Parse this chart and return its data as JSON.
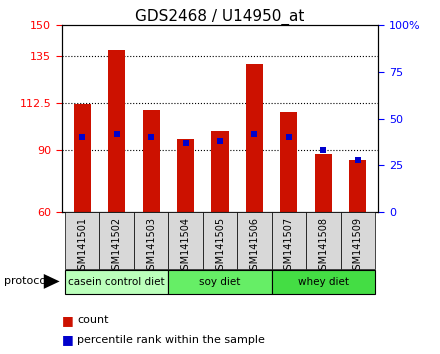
{
  "title": "GDS2468 / U14950_at",
  "samples": [
    "GSM141501",
    "GSM141502",
    "GSM141503",
    "GSM141504",
    "GSM141505",
    "GSM141506",
    "GSM141507",
    "GSM141508",
    "GSM141509"
  ],
  "count_values": [
    112,
    138,
    109,
    95,
    99,
    131,
    108,
    88,
    85
  ],
  "percentile_values": [
    40,
    42,
    40,
    37,
    38,
    42,
    40,
    33,
    28
  ],
  "bar_bottom": 60,
  "ylim": [
    60,
    150
  ],
  "yticks_left": [
    60,
    90,
    112.5,
    135,
    150
  ],
  "yticks_right": [
    0,
    25,
    50,
    75,
    100
  ],
  "right_ylim": [
    0,
    100
  ],
  "bar_color": "#cc1100",
  "percentile_color": "#0000cc",
  "protocol_groups": [
    {
      "label": "casein control diet",
      "start": 0,
      "end": 3,
      "color": "#aaffaa"
    },
    {
      "label": "soy diet",
      "start": 3,
      "end": 6,
      "color": "#66ee66"
    },
    {
      "label": "whey diet",
      "start": 6,
      "end": 9,
      "color": "#44cc44"
    }
  ],
  "protocol_label": "protocol",
  "legend_count": "count",
  "legend_percentile": "percentile rank within the sample",
  "background_color": "#ffffff",
  "title_fontsize": 11,
  "tick_fontsize": 8,
  "bar_width": 0.5,
  "group_colors": [
    "#bbffbb",
    "#66ee66",
    "#44dd44"
  ],
  "label_bg_color": "#d8d8d8"
}
